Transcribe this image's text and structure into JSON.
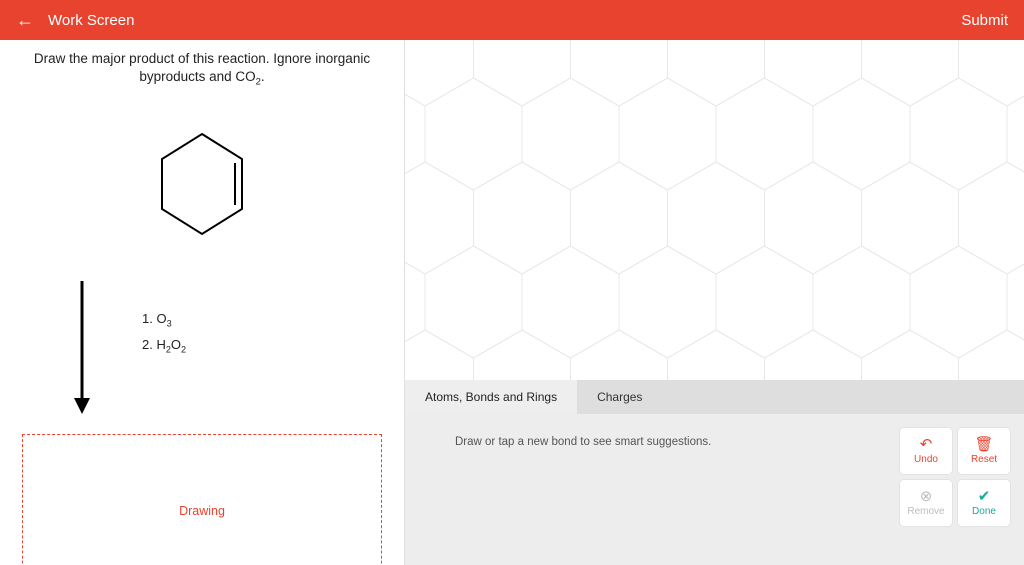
{
  "header": {
    "title": "Work Screen",
    "submit": "Submit",
    "accent_color": "#e8432f"
  },
  "prompt": {
    "line1": "Draw the major product of this reaction. Ignore inorganic",
    "line2_html": "byproducts and CO₂."
  },
  "reagents": {
    "step1_html": "1. O₃",
    "step2_html": "2. H₂O₂"
  },
  "drawing_box": {
    "label": "Drawing"
  },
  "canvas": {
    "hex_grid": {
      "stroke": "#e8e8e8",
      "size": 56,
      "rows": 6,
      "cols": 9
    }
  },
  "tabs": {
    "active": "Atoms, Bonds and Rings",
    "items": [
      "Atoms, Bonds and Rings",
      "Charges"
    ]
  },
  "toolbar": {
    "hint": "Draw or tap a new bond to see smart suggestions.",
    "undo": "Undo",
    "reset": "Reset",
    "remove": "Remove",
    "done": "Done"
  }
}
